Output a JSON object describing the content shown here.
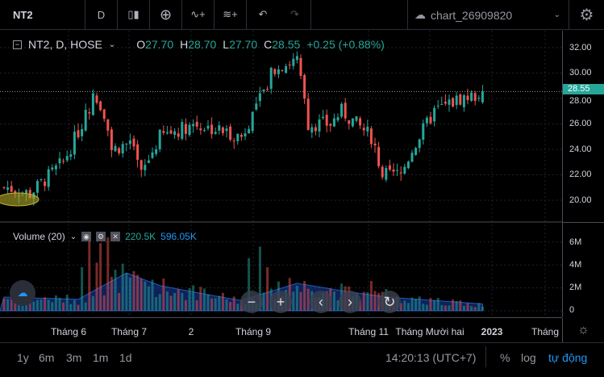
{
  "toolbar": {
    "symbol": "NT2",
    "interval": "D",
    "chart_name": "chart_26909820"
  },
  "legend": {
    "title": "NT2, D, HOSE",
    "o_label": "O",
    "o": "27.70",
    "h_label": "H",
    "h": "28.70",
    "l_label": "L",
    "l": "27.70",
    "c_label": "C",
    "c": "28.55",
    "change": "+0.25 (+0.88%)"
  },
  "volume_legend": {
    "title": "Volume (20)",
    "vol": "220.5K",
    "ma": "596.05K"
  },
  "price_axis": {
    "labels": [
      "32.00",
      "30.00",
      "28.00",
      "26.00",
      "24.00",
      "22.00",
      "20.00"
    ],
    "current": "28.55"
  },
  "volume_axis": {
    "labels": [
      "6M",
      "4M",
      "2M",
      "0"
    ]
  },
  "time_axis": {
    "labels": [
      "Tháng 6",
      "Tháng 7",
      "2",
      "Tháng 9",
      "Tháng 11",
      "Tháng Mười hai",
      "2023",
      "Tháng"
    ]
  },
  "bottom": {
    "ranges": [
      "1y",
      "6m",
      "3m",
      "1m",
      "1d"
    ],
    "clock": "14:20:13 (UTC+7)",
    "percent": "%",
    "log": "log",
    "auto": "tự động"
  },
  "colors": {
    "up": "#26a69a",
    "down": "#ef5350",
    "ma": "#2962ff"
  },
  "chart_data": {
    "type": "candlestick",
    "close_keypoints": [
      [
        0,
        21
      ],
      [
        1,
        21
      ],
      [
        7,
        20.5
      ],
      [
        16,
        23
      ],
      [
        21,
        26
      ],
      [
        24,
        28
      ],
      [
        27,
        27
      ],
      [
        29,
        24
      ],
      [
        34,
        24.5
      ],
      [
        37,
        22
      ],
      [
        42,
        25
      ],
      [
        51,
        26
      ],
      [
        58,
        25.5
      ],
      [
        64,
        25
      ],
      [
        69,
        28
      ],
      [
        73,
        30.5
      ],
      [
        79,
        31
      ],
      [
        82,
        26
      ],
      [
        88,
        26
      ],
      [
        91,
        27
      ],
      [
        99,
        25
      ],
      [
        102,
        22
      ],
      [
        107,
        22
      ],
      [
        110,
        24
      ],
      [
        116,
        27
      ],
      [
        123,
        28
      ],
      [
        127,
        28.2
      ],
      [
        129,
        28.55
      ]
    ],
    "volume_ma_keypoints": [
      [
        0,
        1.2
      ],
      [
        20,
        1.0
      ],
      [
        33,
        3.3
      ],
      [
        42,
        2.2
      ],
      [
        55,
        1.4
      ],
      [
        64,
        0.9
      ],
      [
        79,
        2.4
      ],
      [
        92,
        1.7
      ],
      [
        103,
        1.2
      ],
      [
        129,
        0.6
      ]
    ],
    "volume_spikes": [
      [
        21,
        3.8
      ],
      [
        23,
        6.7
      ],
      [
        25,
        4.2
      ],
      [
        26,
        5.9
      ],
      [
        28,
        6.4
      ],
      [
        33,
        3.3
      ],
      [
        66,
        4.6
      ],
      [
        69,
        5.6
      ],
      [
        71,
        3.8
      ],
      [
        81,
        2.6
      ],
      [
        99,
        2.6
      ],
      [
        103,
        1.9
      ]
    ],
    "price_range": [
      19,
      33
    ],
    "volume_range": [
      0,
      7
    ]
  }
}
